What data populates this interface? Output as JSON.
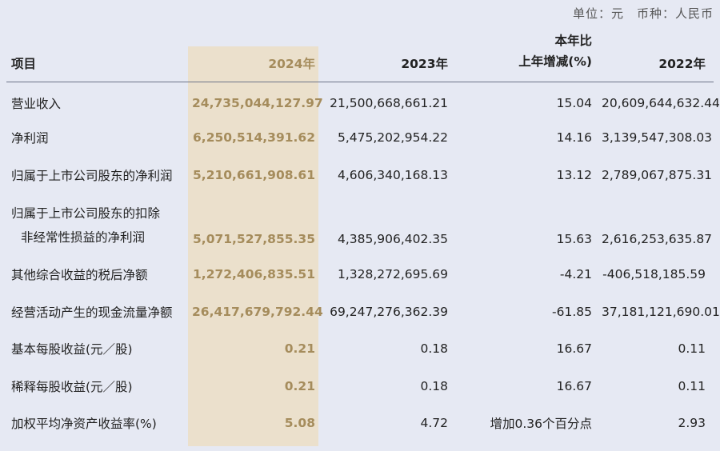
{
  "unit_line": "单位：元　币种：人民币",
  "header": {
    "col_item": "项目",
    "col_2024": "2024年",
    "col_2023": "2023年",
    "col_change_line1": "本年比",
    "col_change_line2": "上年增减(%)",
    "col_2022": "2022年"
  },
  "rows": [
    {
      "label": "营业收入",
      "v2024": "24,735,044,127.97",
      "v2023": "21,500,668,661.21",
      "change": "15.04",
      "v2022": "20,609,644,632.44"
    },
    {
      "label": "净利润",
      "v2024": "6,250,514,391.62",
      "v2023": "5,475,202,954.22",
      "change": "14.16",
      "v2022": "3,139,547,308.03"
    },
    {
      "label": "归属于上市公司股东的净利润",
      "v2024": "5,210,661,908.61",
      "v2023": "4,606,340,168.13",
      "change": "13.12",
      "v2022": "2,789,067,875.31"
    },
    {
      "label_line1": "归属于上市公司股东的扣除",
      "label_line2": "非经常性损益的净利润",
      "v2024": "5,071,527,855.35",
      "v2023": "4,385,906,402.35",
      "change": "15.63",
      "v2022": "2,616,253,635.87"
    },
    {
      "label": "其他综合收益的税后净额",
      "v2024": "1,272,406,835.51",
      "v2023": "1,328,272,695.69",
      "change": "-4.21",
      "v2022": "-406,518,185.59"
    },
    {
      "label": "经营活动产生的现金流量净额",
      "v2024": "26,417,679,792.44",
      "v2023": "69,247,276,362.39",
      "change": "-61.85",
      "v2022": "37,181,121,690.01"
    },
    {
      "label": "基本每股收益(元／股)",
      "v2024": "0.21",
      "v2023": "0.18",
      "change": "16.67",
      "v2022": "0.11"
    },
    {
      "label": "稀释每股收益(元／股)",
      "v2024": "0.21",
      "v2023": "0.18",
      "change": "16.67",
      "v2022": "0.11"
    },
    {
      "label": "加权平均净资产收益率(%)",
      "v2024": "5.08",
      "v2023": "4.72",
      "change": "增加0.36个百分点",
      "v2022": "2.93"
    }
  ]
}
